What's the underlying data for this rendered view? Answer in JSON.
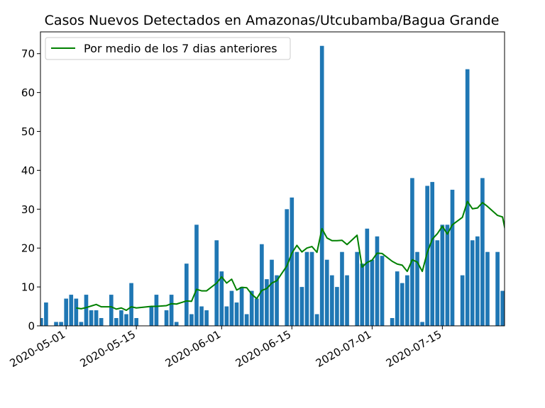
{
  "chart_data": {
    "type": "bar",
    "title": "Casos Nuevos Detectados en Amazonas/Utcubamba/Bagua Grande",
    "xlabel": "",
    "ylabel": "",
    "ylim": [
      0,
      75.6
    ],
    "yticks": [
      0,
      10,
      20,
      30,
      40,
      50,
      60,
      70
    ],
    "xlim": [
      "2020-04-26",
      "2020-07-27"
    ],
    "xtick_labels": [
      "2020-05-01",
      "2020-05-15",
      "2020-06-01",
      "2020-06-15",
      "2020-07-01",
      "2020-07-15"
    ],
    "grid": false,
    "legend_position": "top-left",
    "bar_color": "#1f77b4",
    "line_color": "#008000",
    "series": [
      {
        "type": "bar",
        "points": [
          [
            "2020-04-26",
            2
          ],
          [
            "2020-04-27",
            6
          ],
          [
            "2020-04-29",
            1
          ],
          [
            "2020-04-30",
            1
          ],
          [
            "2020-05-01",
            7
          ],
          [
            "2020-05-02",
            8
          ],
          [
            "2020-05-03",
            7
          ],
          [
            "2020-05-04",
            1
          ],
          [
            "2020-05-05",
            8
          ],
          [
            "2020-05-06",
            4
          ],
          [
            "2020-05-07",
            4
          ],
          [
            "2020-05-08",
            2
          ],
          [
            "2020-05-10",
            8
          ],
          [
            "2020-05-11",
            2
          ],
          [
            "2020-05-12",
            4
          ],
          [
            "2020-05-13",
            3
          ],
          [
            "2020-05-14",
            11
          ],
          [
            "2020-05-15",
            2
          ],
          [
            "2020-05-18",
            5
          ],
          [
            "2020-05-19",
            8
          ],
          [
            "2020-05-21",
            4
          ],
          [
            "2020-05-22",
            8
          ],
          [
            "2020-05-23",
            1
          ],
          [
            "2020-05-25",
            16
          ],
          [
            "2020-05-26",
            3
          ],
          [
            "2020-05-27",
            26
          ],
          [
            "2020-05-28",
            5
          ],
          [
            "2020-05-29",
            4
          ],
          [
            "2020-05-31",
            22
          ],
          [
            "2020-06-01",
            14
          ],
          [
            "2020-06-02",
            5
          ],
          [
            "2020-06-03",
            9
          ],
          [
            "2020-06-04",
            6
          ],
          [
            "2020-06-05",
            10
          ],
          [
            "2020-06-06",
            3
          ],
          [
            "2020-06-07",
            9
          ],
          [
            "2020-06-08",
            7
          ],
          [
            "2020-06-09",
            21
          ],
          [
            "2020-06-10",
            12
          ],
          [
            "2020-06-11",
            17
          ],
          [
            "2020-06-12",
            13
          ],
          [
            "2020-06-14",
            30
          ],
          [
            "2020-06-15",
            33
          ],
          [
            "2020-06-16",
            19
          ],
          [
            "2020-06-17",
            10
          ],
          [
            "2020-06-18",
            19
          ],
          [
            "2020-06-19",
            19
          ],
          [
            "2020-06-20",
            3
          ],
          [
            "2020-06-21",
            72
          ],
          [
            "2020-06-22",
            17
          ],
          [
            "2020-06-23",
            13
          ],
          [
            "2020-06-24",
            10
          ],
          [
            "2020-06-25",
            19
          ],
          [
            "2020-06-26",
            13
          ],
          [
            "2020-06-28",
            19
          ],
          [
            "2020-06-29",
            16
          ],
          [
            "2020-06-30",
            25
          ],
          [
            "2020-07-01",
            17
          ],
          [
            "2020-07-02",
            23
          ],
          [
            "2020-07-03",
            18
          ],
          [
            "2020-07-05",
            2
          ],
          [
            "2020-07-06",
            14
          ],
          [
            "2020-07-07",
            11
          ],
          [
            "2020-07-08",
            13
          ],
          [
            "2020-07-09",
            38
          ],
          [
            "2020-07-10",
            19
          ],
          [
            "2020-07-11",
            1
          ],
          [
            "2020-07-12",
            36
          ],
          [
            "2020-07-13",
            37
          ],
          [
            "2020-07-14",
            22
          ],
          [
            "2020-07-15",
            26
          ],
          [
            "2020-07-16",
            26
          ],
          [
            "2020-07-17",
            35
          ],
          [
            "2020-07-19",
            13
          ],
          [
            "2020-07-20",
            66
          ],
          [
            "2020-07-21",
            22
          ],
          [
            "2020-07-22",
            23
          ],
          [
            "2020-07-23",
            38
          ],
          [
            "2020-07-24",
            19
          ],
          [
            "2020-07-26",
            19
          ],
          [
            "2020-07-27",
            9
          ],
          [
            "2020-07-28",
            22
          ],
          [
            "2020-07-29",
            16
          ],
          [
            "2020-07-30",
            31
          ],
          [
            "2020-07-31",
            14
          ],
          [
            "2020-08-02",
            28
          ]
        ]
      },
      {
        "type": "line",
        "name": "Por medio de los 7 dias anteriores",
        "points": [
          [
            "2020-05-03",
            4.6
          ],
          [
            "2020-05-04",
            4.4
          ],
          [
            "2020-05-05",
            4.7
          ],
          [
            "2020-05-06",
            5.1
          ],
          [
            "2020-05-07",
            5.5
          ],
          [
            "2020-05-08",
            4.9
          ],
          [
            "2020-05-10",
            4.9
          ],
          [
            "2020-05-11",
            4.3
          ],
          [
            "2020-05-12",
            4.6
          ],
          [
            "2020-05-13",
            4.0
          ],
          [
            "2020-05-14",
            4.9
          ],
          [
            "2020-05-15",
            4.6
          ],
          [
            "2020-05-18",
            5.0
          ],
          [
            "2020-05-19",
            5.0
          ],
          [
            "2020-05-21",
            5.2
          ],
          [
            "2020-05-22",
            5.7
          ],
          [
            "2020-05-23",
            5.6
          ],
          [
            "2020-05-25",
            6.4
          ],
          [
            "2020-05-26",
            6.3
          ],
          [
            "2020-05-27",
            9.4
          ],
          [
            "2020-05-28",
            9.0
          ],
          [
            "2020-05-29",
            9.0
          ],
          [
            "2020-05-31",
            11.0
          ],
          [
            "2020-06-01",
            12.6
          ],
          [
            "2020-06-02",
            11.0
          ],
          [
            "2020-06-03",
            12.0
          ],
          [
            "2020-06-04",
            9.2
          ],
          [
            "2020-06-05",
            9.9
          ],
          [
            "2020-06-06",
            9.8
          ],
          [
            "2020-06-07",
            8.1
          ],
          [
            "2020-06-08",
            7.0
          ],
          [
            "2020-06-09",
            9.1
          ],
          [
            "2020-06-10",
            9.6
          ],
          [
            "2020-06-11",
            11.0
          ],
          [
            "2020-06-12",
            11.6
          ],
          [
            "2020-06-14",
            15.4
          ],
          [
            "2020-06-15",
            18.7
          ],
          [
            "2020-06-16",
            20.7
          ],
          [
            "2020-06-17",
            19.0
          ],
          [
            "2020-06-18",
            20.0
          ],
          [
            "2020-06-19",
            20.4
          ],
          [
            "2020-06-20",
            18.9
          ],
          [
            "2020-06-21",
            25.0
          ],
          [
            "2020-06-22",
            22.6
          ],
          [
            "2020-06-23",
            21.9
          ],
          [
            "2020-06-24",
            21.9
          ],
          [
            "2020-06-25",
            22.0
          ],
          [
            "2020-06-26",
            20.9
          ],
          [
            "2020-06-28",
            23.3
          ],
          [
            "2020-06-29",
            15.1
          ],
          [
            "2020-06-30",
            16.3
          ],
          [
            "2020-07-01",
            16.9
          ],
          [
            "2020-07-02",
            18.7
          ],
          [
            "2020-07-03",
            18.6
          ],
          [
            "2020-07-05",
            16.6
          ],
          [
            "2020-07-06",
            15.9
          ],
          [
            "2020-07-07",
            15.6
          ],
          [
            "2020-07-08",
            14.0
          ],
          [
            "2020-07-09",
            17.0
          ],
          [
            "2020-07-10",
            16.4
          ],
          [
            "2020-07-11",
            14.0
          ],
          [
            "2020-07-12",
            18.9
          ],
          [
            "2020-07-13",
            22.3
          ],
          [
            "2020-07-14",
            23.7
          ],
          [
            "2020-07-15",
            25.6
          ],
          [
            "2020-07-16",
            23.6
          ],
          [
            "2020-07-17",
            26.0
          ],
          [
            "2020-07-19",
            27.9
          ],
          [
            "2020-07-20",
            32.0
          ],
          [
            "2020-07-21",
            30.1
          ],
          [
            "2020-07-22",
            30.3
          ],
          [
            "2020-07-23",
            31.7
          ],
          [
            "2020-07-24",
            30.7
          ],
          [
            "2020-07-26",
            28.4
          ],
          [
            "2020-07-27",
            28.0
          ],
          [
            "2020-07-28",
            21.6
          ],
          [
            "2020-07-29",
            21.0
          ],
          [
            "2020-07-30",
            22.0
          ],
          [
            "2020-07-31",
            18.4
          ],
          [
            "2020-08-02",
            19.7
          ]
        ]
      }
    ]
  }
}
